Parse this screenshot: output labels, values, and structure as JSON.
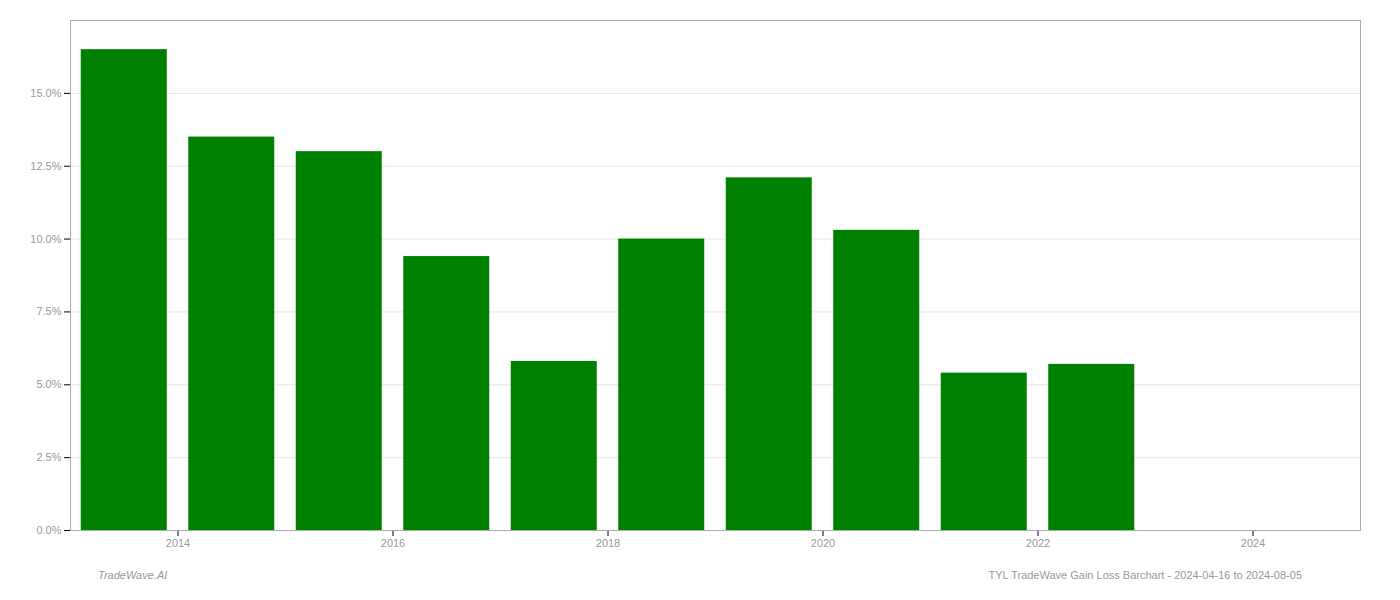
{
  "chart_data": {
    "type": "bar",
    "x": [
      2013,
      2014,
      2015,
      2016,
      2017,
      2018,
      2019,
      2020,
      2021,
      2022
    ],
    "values": [
      0.165,
      0.135,
      0.13,
      0.094,
      0.058,
      0.1,
      0.121,
      0.103,
      0.054,
      0.057
    ],
    "color": "#008000",
    "xlim": [
      2012.5,
      2024.5
    ],
    "xticks": [
      {
        "value": 2013.5,
        "label": "2014"
      },
      {
        "value": 2015.5,
        "label": "2016"
      },
      {
        "value": 2017.5,
        "label": "2018"
      },
      {
        "value": 2019.5,
        "label": "2020"
      },
      {
        "value": 2021.5,
        "label": "2022"
      },
      {
        "value": 2023.5,
        "label": "2024"
      }
    ],
    "ylim": [
      0,
      0.175
    ],
    "yticks": [
      {
        "value": 0.0,
        "label": "0.0%"
      },
      {
        "value": 0.025,
        "label": "2.5%"
      },
      {
        "value": 0.05,
        "label": "5.0%"
      },
      {
        "value": 0.075,
        "label": "7.5%"
      },
      {
        "value": 0.1,
        "label": "10.0%"
      },
      {
        "value": 0.125,
        "label": "12.5%"
      },
      {
        "value": 0.15,
        "label": "15.0%"
      }
    ],
    "grid": true,
    "annotations": [
      "TradeWave.AI",
      "TYL TradeWave Gain Loss Barchart - 2024-04-16 to 2024-08-05"
    ]
  }
}
